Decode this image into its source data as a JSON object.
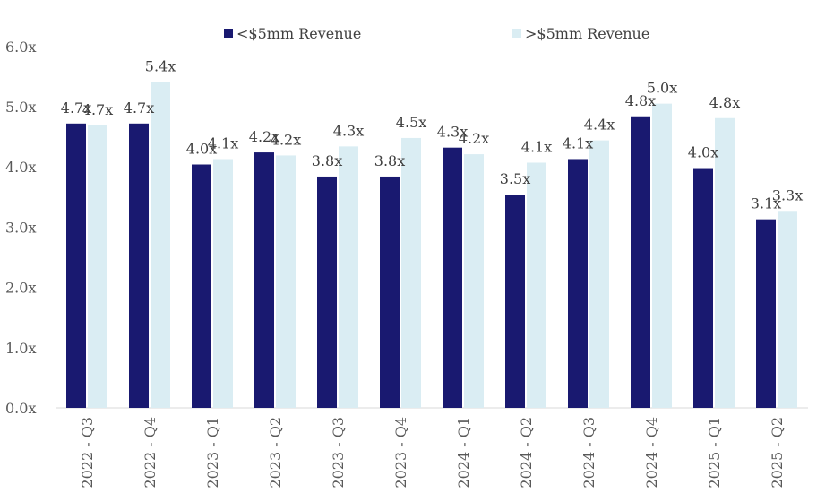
{
  "chart_data": {
    "type": "bar",
    "title": "",
    "xlabel": "",
    "ylabel": "",
    "ylim": [
      0,
      6
    ],
    "yticks": [
      "0.0x",
      "1.0x",
      "2.0x",
      "3.0x",
      "4.0x",
      "5.0x",
      "6.0x"
    ],
    "grid": false,
    "legend_position": "top",
    "categories": [
      "2022 - Q3",
      "2022 - Q4",
      "2023 - Q1",
      "2023 - Q2",
      "2023 - Q3",
      "2023 - Q4",
      "2024 - Q1",
      "2024 - Q2",
      "2024 - Q3",
      "2024 - Q4",
      "2025 - Q1",
      "2025 - Q2"
    ],
    "series": [
      {
        "name": "<$5mm Revenue",
        "color": "#191970",
        "values": [
          4.72,
          4.72,
          4.04,
          4.24,
          3.84,
          3.84,
          4.32,
          3.54,
          4.13,
          4.84,
          3.98,
          3.13
        ],
        "labels": [
          "4.7x",
          "4.7x",
          "4.0x",
          "4.2x",
          "3.8x",
          "3.8x",
          "4.3x",
          "3.5x",
          "4.1x",
          "4.8x",
          "4.0x",
          "3.1x"
        ]
      },
      {
        "name": ">$5mm Revenue",
        "color": "#DAEDF3",
        "values": [
          4.69,
          5.41,
          4.13,
          4.19,
          4.34,
          4.48,
          4.21,
          4.07,
          4.44,
          5.05,
          4.81,
          3.27
        ],
        "labels": [
          "4.7x",
          "5.4x",
          "4.1x",
          "4.2x",
          "4.3x",
          "4.5x",
          "4.2x",
          "4.1x",
          "4.4x",
          "5.0x",
          "4.8x",
          "3.3x"
        ]
      }
    ]
  }
}
